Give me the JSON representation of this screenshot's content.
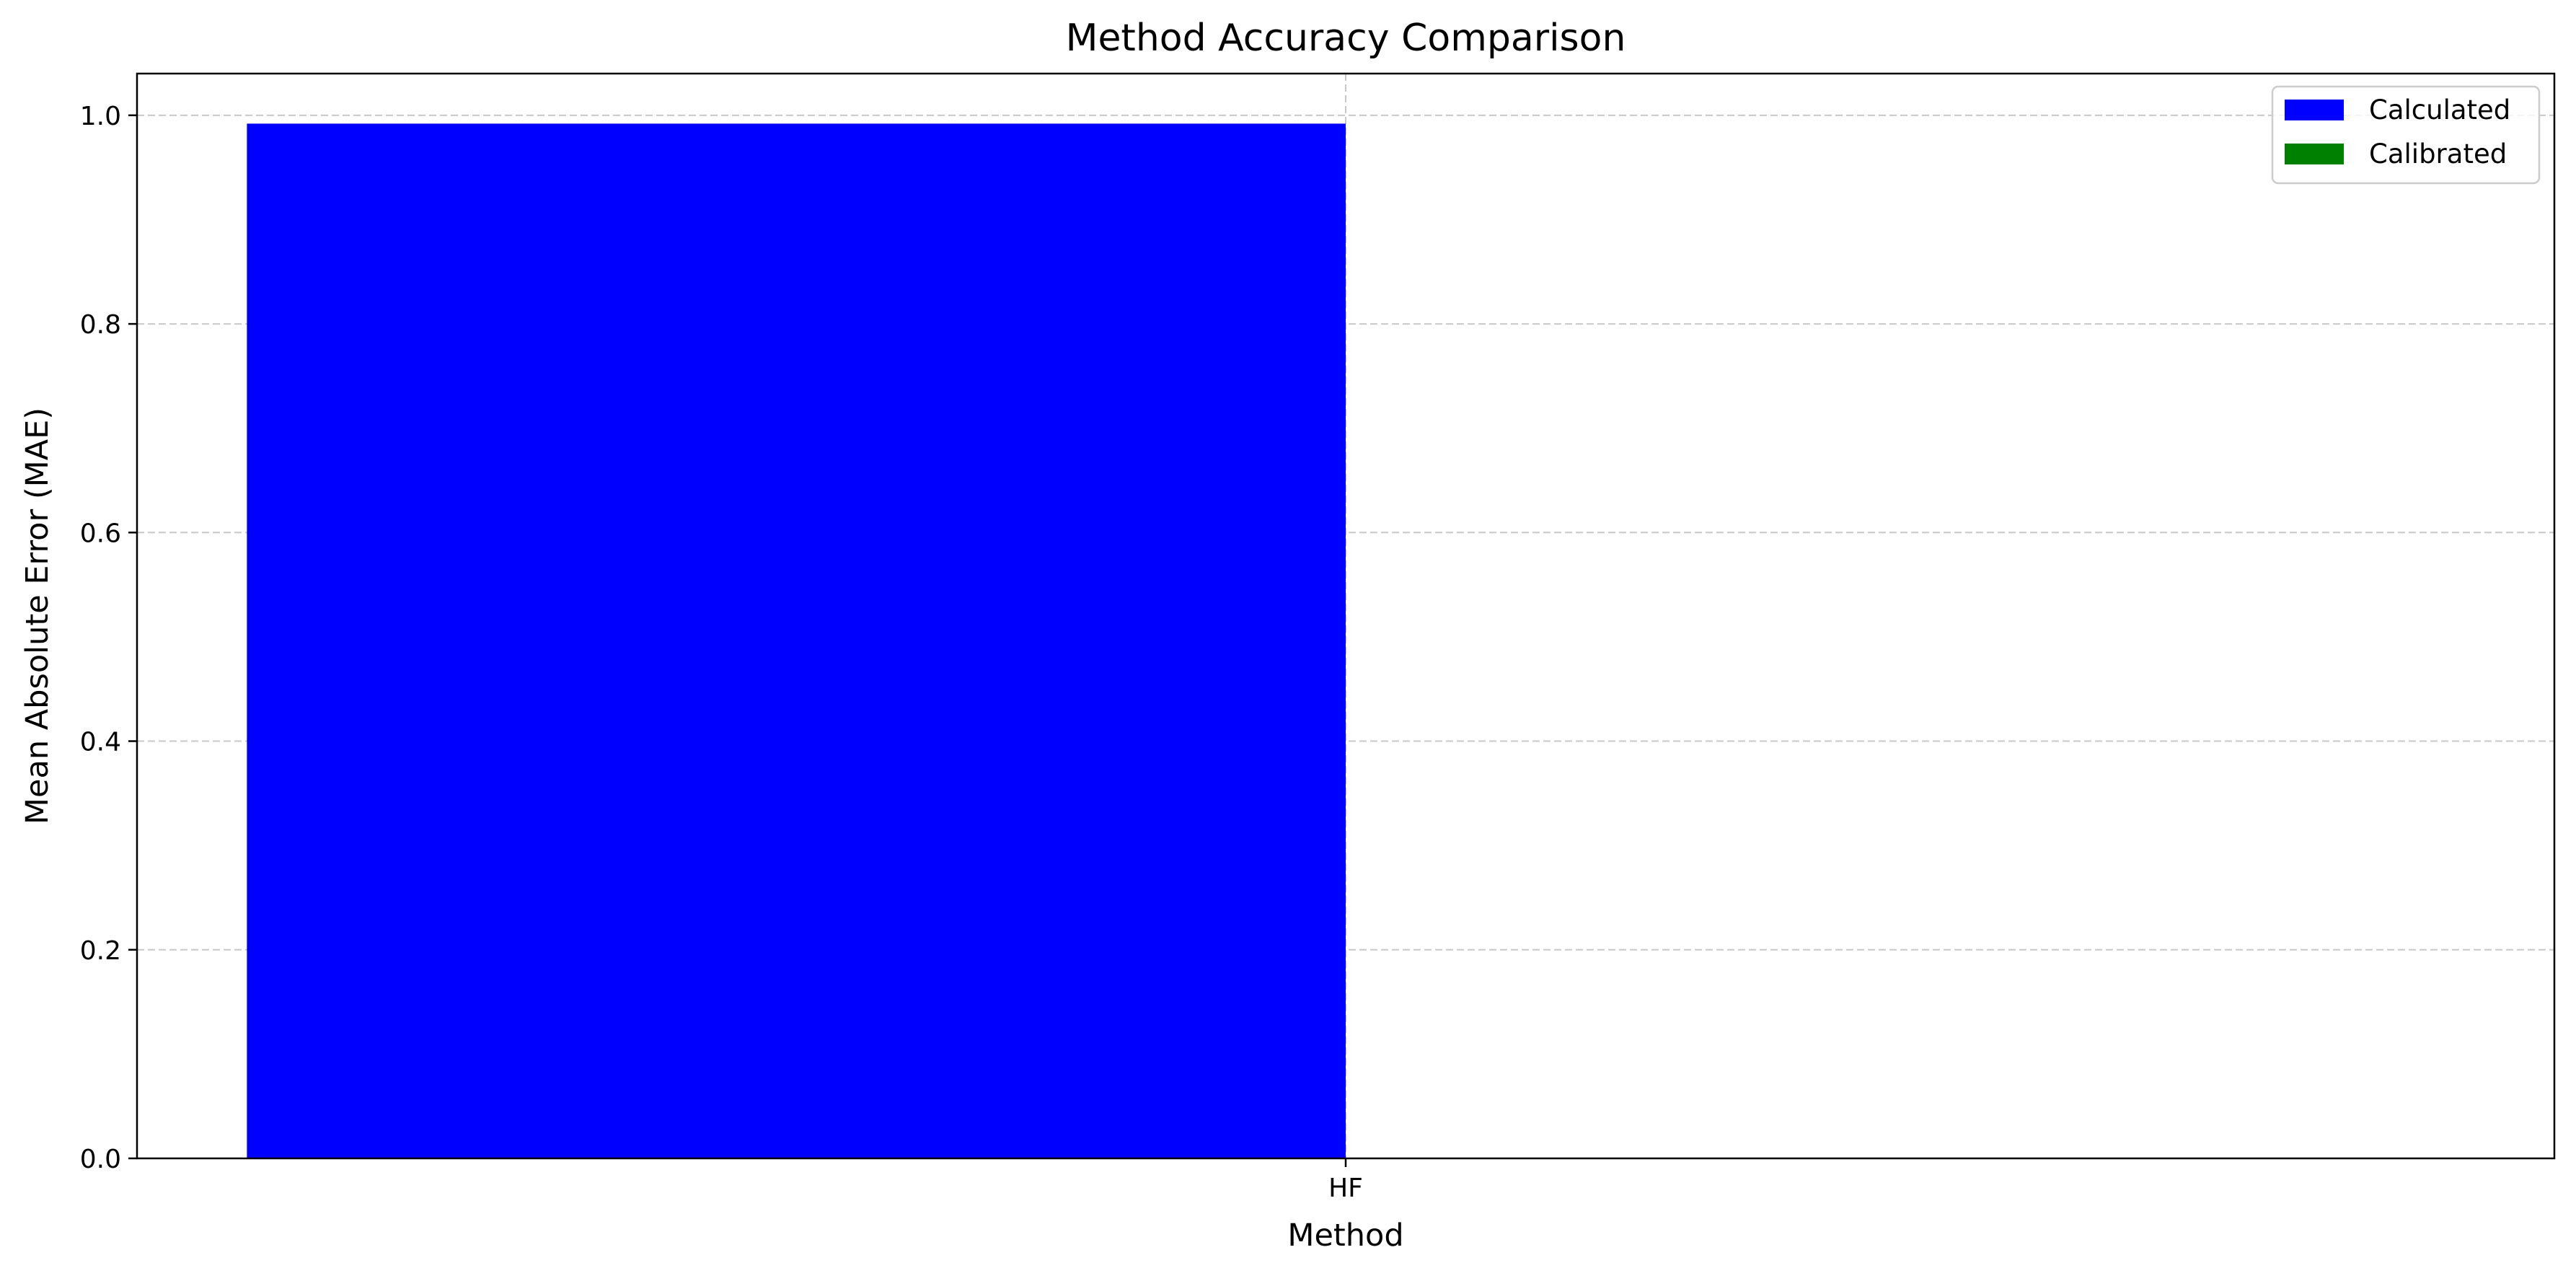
{
  "chart_data": {
    "type": "bar",
    "title": "Method Accuracy Comparison",
    "xlabel": "Method",
    "ylabel": "Mean Absolute Error (MAE)",
    "categories": [
      "HF"
    ],
    "series": [
      {
        "name": "Calculated",
        "color": "#0000ff",
        "values": [
          0.992
        ]
      },
      {
        "name": "Calibrated",
        "color": "#008000",
        "values": [
          0.0
        ]
      }
    ],
    "ylim": [
      0.0,
      1.04
    ],
    "yticks": [
      "0.0",
      "0.2",
      "0.4",
      "0.6",
      "0.8",
      "1.0"
    ],
    "grid": true,
    "legend_position": "top-right"
  }
}
